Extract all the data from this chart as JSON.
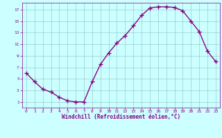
{
  "x": [
    0,
    1,
    2,
    3,
    4,
    5,
    6,
    7,
    8,
    9,
    10,
    11,
    12,
    13,
    14,
    15,
    16,
    17,
    18,
    19,
    20,
    21,
    22,
    23
  ],
  "y": [
    6.0,
    4.5,
    3.2,
    2.7,
    1.8,
    1.2,
    1.0,
    1.0,
    4.5,
    7.5,
    9.5,
    11.2,
    12.5,
    14.2,
    16.0,
    17.3,
    17.5,
    17.5,
    17.4,
    16.8,
    15.0,
    13.2,
    9.8,
    8.0
  ],
  "xlim": [
    -0.5,
    23.5
  ],
  "ylim": [
    0,
    18.2
  ],
  "xticks": [
    0,
    1,
    2,
    3,
    4,
    5,
    6,
    7,
    8,
    9,
    10,
    11,
    12,
    13,
    14,
    15,
    16,
    17,
    18,
    19,
    20,
    21,
    22,
    23
  ],
  "yticks": [
    1,
    3,
    5,
    7,
    9,
    11,
    13,
    15,
    17
  ],
  "xlabel": "Windchill (Refroidissement éolien,°C)",
  "line_color": "#880088",
  "bg_color": "#ccffff",
  "grid_color": "#99cccc",
  "tick_color": "#880088",
  "label_color": "#880088",
  "marker_size": 4,
  "linewidth": 1.0
}
